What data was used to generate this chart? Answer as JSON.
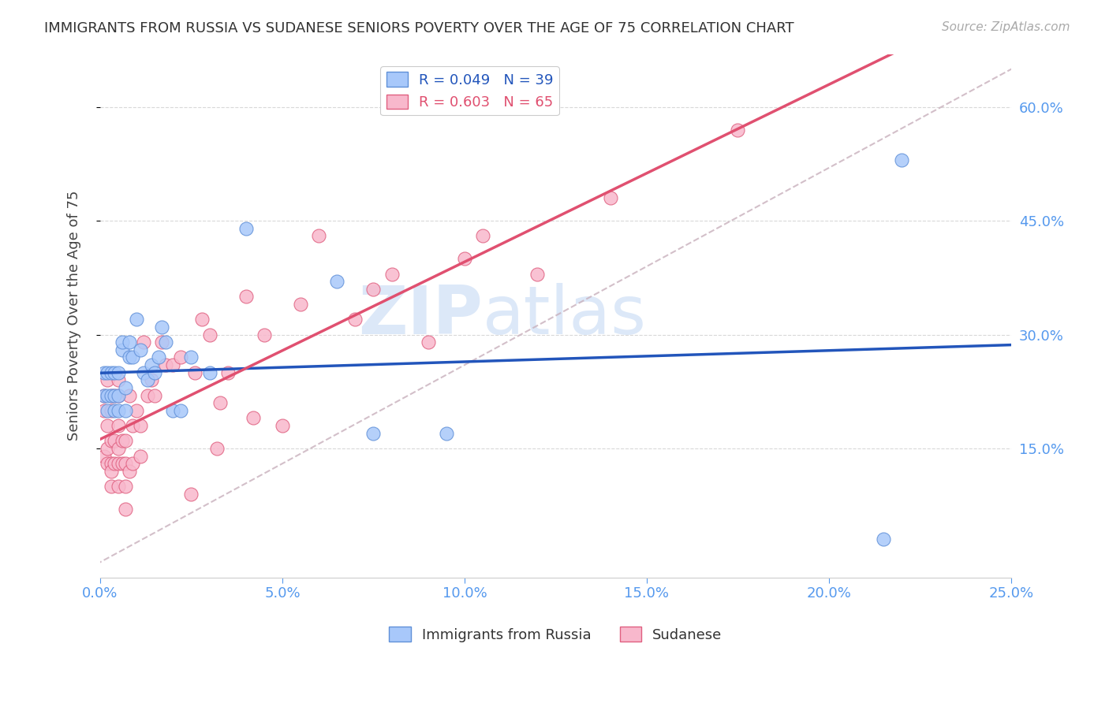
{
  "title": "IMMIGRANTS FROM RUSSIA VS SUDANESE SENIORS POVERTY OVER THE AGE OF 75 CORRELATION CHART",
  "source": "Source: ZipAtlas.com",
  "ylabel": "Seniors Poverty Over the Age of 75",
  "x_tick_labels": [
    "0.0%",
    "5.0%",
    "10.0%",
    "15.0%",
    "20.0%",
    "25.0%"
  ],
  "x_ticks": [
    0.0,
    0.05,
    0.1,
    0.15,
    0.2,
    0.25
  ],
  "y_tick_labels": [
    "15.0%",
    "30.0%",
    "45.0%",
    "60.0%"
  ],
  "y_ticks": [
    0.15,
    0.3,
    0.45,
    0.6
  ],
  "xlim": [
    0.0,
    0.25
  ],
  "ylim": [
    -0.02,
    0.67
  ],
  "russia_x": [
    0.001,
    0.001,
    0.002,
    0.002,
    0.002,
    0.003,
    0.003,
    0.004,
    0.004,
    0.004,
    0.005,
    0.005,
    0.005,
    0.006,
    0.006,
    0.007,
    0.007,
    0.008,
    0.008,
    0.009,
    0.01,
    0.011,
    0.012,
    0.013,
    0.014,
    0.015,
    0.016,
    0.017,
    0.018,
    0.02,
    0.022,
    0.025,
    0.03,
    0.04,
    0.065,
    0.075,
    0.095,
    0.215,
    0.22
  ],
  "russia_y": [
    0.22,
    0.25,
    0.2,
    0.22,
    0.25,
    0.22,
    0.25,
    0.2,
    0.22,
    0.25,
    0.22,
    0.25,
    0.2,
    0.28,
    0.29,
    0.23,
    0.2,
    0.27,
    0.29,
    0.27,
    0.32,
    0.28,
    0.25,
    0.24,
    0.26,
    0.25,
    0.27,
    0.31,
    0.29,
    0.2,
    0.2,
    0.27,
    0.25,
    0.44,
    0.37,
    0.17,
    0.17,
    0.03,
    0.53
  ],
  "sudan_x": [
    0.001,
    0.001,
    0.001,
    0.002,
    0.002,
    0.002,
    0.002,
    0.003,
    0.003,
    0.003,
    0.003,
    0.003,
    0.003,
    0.004,
    0.004,
    0.004,
    0.005,
    0.005,
    0.005,
    0.005,
    0.005,
    0.005,
    0.006,
    0.006,
    0.007,
    0.007,
    0.007,
    0.007,
    0.008,
    0.008,
    0.009,
    0.009,
    0.01,
    0.011,
    0.011,
    0.012,
    0.013,
    0.014,
    0.015,
    0.017,
    0.018,
    0.02,
    0.022,
    0.025,
    0.026,
    0.028,
    0.03,
    0.032,
    0.033,
    0.035,
    0.04,
    0.042,
    0.045,
    0.05,
    0.055,
    0.06,
    0.07,
    0.075,
    0.08,
    0.09,
    0.1,
    0.105,
    0.12,
    0.14,
    0.175
  ],
  "sudan_y": [
    0.2,
    0.22,
    0.14,
    0.13,
    0.15,
    0.18,
    0.24,
    0.13,
    0.1,
    0.12,
    0.16,
    0.2,
    0.22,
    0.13,
    0.16,
    0.22,
    0.1,
    0.13,
    0.15,
    0.18,
    0.22,
    0.24,
    0.13,
    0.16,
    0.07,
    0.1,
    0.13,
    0.16,
    0.12,
    0.22,
    0.13,
    0.18,
    0.2,
    0.14,
    0.18,
    0.29,
    0.22,
    0.24,
    0.22,
    0.29,
    0.26,
    0.26,
    0.27,
    0.09,
    0.25,
    0.32,
    0.3,
    0.15,
    0.21,
    0.25,
    0.35,
    0.19,
    0.3,
    0.18,
    0.34,
    0.43,
    0.32,
    0.36,
    0.38,
    0.29,
    0.4,
    0.43,
    0.38,
    0.48,
    0.57
  ],
  "russia_color": "#a8c8fa",
  "russia_edge": "#6090d8",
  "sudan_color": "#f8b8cc",
  "sudan_edge": "#e06080",
  "russia_line_color": "#2255bb",
  "sudan_line_color": "#e05070",
  "diag_line_color": "#c8b0bc",
  "background_color": "#ffffff",
  "grid_color": "#d8d8d8",
  "axis_label_color": "#5599ee",
  "title_color": "#333333",
  "watermark_color": "#dce8f8",
  "watermark_text": "ZIP",
  "watermark_text2": "atlas",
  "legend_label_russia": "R = 0.049   N = 39",
  "legend_label_sudan": "R = 0.603   N = 65",
  "bottom_legend_russia": "Immigrants from Russia",
  "bottom_legend_sudan": "Sudanese"
}
